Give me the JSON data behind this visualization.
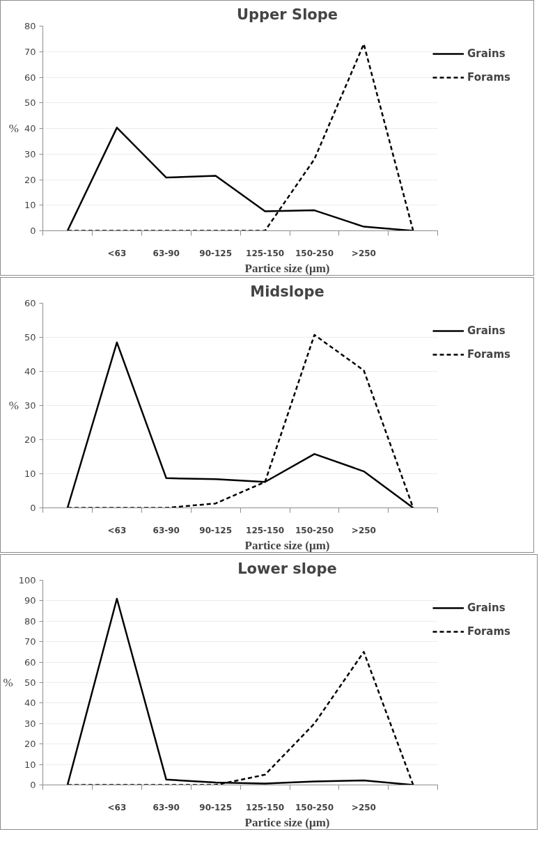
{
  "chart_data": [
    {
      "type": "line",
      "title": "Upper Slope",
      "xlabel": "Partice size (μm)",
      "ylabel": "%",
      "categories": [
        null,
        "<63",
        "63-90",
        "90-125",
        "125-150",
        "150-250",
        ">250",
        null
      ],
      "series": [
        {
          "name": "Grains",
          "color": "#000000",
          "line_style": "solid",
          "values": [
            0,
            40.3,
            20.8,
            21.5,
            7.6,
            8,
            1.6,
            0
          ]
        },
        {
          "name": "Forams",
          "color": "#000000",
          "line_style": "dashed",
          "values": [
            0,
            0,
            0,
            0,
            0,
            28,
            73,
            0
          ]
        }
      ],
      "ylim": [
        0,
        80
      ],
      "yticks": [
        0,
        10,
        20,
        30,
        40,
        50,
        60,
        70,
        80
      ],
      "grid": "y",
      "legend": "right",
      "marker": "none"
    },
    {
      "type": "line",
      "title": "Midslope",
      "xlabel": "Partice size (μm)",
      "ylabel": "%",
      "categories": [
        null,
        "<63",
        "63-90",
        "90-125",
        "125-150",
        "150-250",
        ">250",
        null
      ],
      "series": [
        {
          "name": "Grains",
          "color": "#000000",
          "line_style": "solid",
          "values": [
            0,
            48.5,
            8.7,
            8.4,
            7.6,
            15.8,
            10.7,
            0
          ]
        },
        {
          "name": "Forams",
          "color": "#000000",
          "line_style": "dashed",
          "values": [
            0,
            0,
            0,
            1.3,
            7.6,
            50.7,
            40.3,
            0
          ]
        }
      ],
      "ylim": [
        0,
        60
      ],
      "yticks": [
        0,
        10,
        20,
        30,
        40,
        50,
        60
      ],
      "grid": "y",
      "legend": "right",
      "marker": "none"
    },
    {
      "type": "line",
      "title": "Lower slope",
      "xlabel": "Partice size (μm)",
      "ylabel": "%",
      "categories": [
        null,
        "<63",
        "63-90",
        "90-125",
        "125-150",
        "150-250",
        ">250",
        null
      ],
      "series": [
        {
          "name": "Grains",
          "color": "#000000",
          "line_style": "solid",
          "values": [
            0,
            91,
            2.6,
            1.2,
            0.7,
            1.7,
            2.2,
            0
          ]
        },
        {
          "name": "Forams",
          "color": "#000000",
          "line_style": "dashed",
          "values": [
            0,
            0,
            0,
            0,
            5,
            30,
            65,
            0
          ]
        }
      ],
      "ylim": [
        0,
        100
      ],
      "yticks": [
        0,
        10,
        20,
        30,
        40,
        50,
        60,
        70,
        80,
        90,
        100
      ],
      "grid": "y",
      "legend": "right",
      "marker": "none"
    }
  ]
}
